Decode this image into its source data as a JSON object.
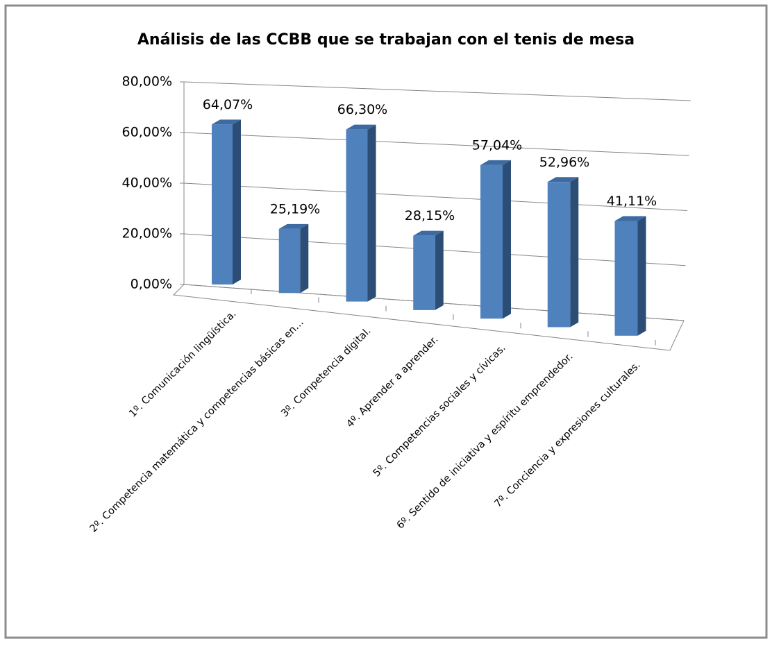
{
  "chart_data": {
    "type": "bar3d",
    "title": "Análisis de las CCBB que se trabajan con el tenis de mesa",
    "categories": [
      "1º. Comunicación lingüística.",
      "2º. Competencia matemática y competencias básicas en…",
      "3º. Competencia digital.",
      "4º. Aprender a aprender.",
      "5º. Competencias sociales y cívicas.",
      "6º. Sentido de iniciativa y espíritu emprendedor.",
      "7º. Conciencia y expresiones culturales."
    ],
    "values": [
      64.07,
      25.19,
      66.3,
      28.15,
      57.04,
      52.96,
      41.11
    ],
    "value_labels": [
      "64,07%",
      "25,19%",
      "66,30%",
      "28,15%",
      "57,04%",
      "52,96%",
      "41,11%"
    ],
    "color": "#4f81bd",
    "ylim": [
      0,
      80
    ],
    "yticks": [
      {
        "value": 0,
        "label": "0,00%"
      },
      {
        "value": 20,
        "label": "20,00%"
      },
      {
        "value": 40,
        "label": "40,00%"
      },
      {
        "value": 60,
        "label": "60,00%"
      },
      {
        "value": 80,
        "label": "80,00%"
      }
    ],
    "grid": true
  }
}
